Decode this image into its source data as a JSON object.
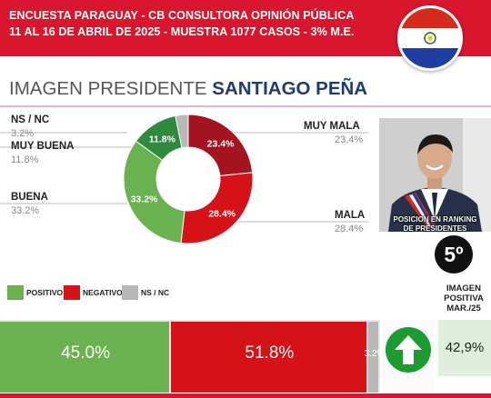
{
  "header": {
    "line1": "ENCUESTA PARAGUAY - CB CONSULTORA OPINIÓN PÚBLICA",
    "line2": "11 AL 16 DE ABRIL DE 2025 - MUESTRA 1077 CASOS   - 3% M.E.",
    "flag_icon": "paraguay-flag-icon"
  },
  "title": {
    "prefix": "IMAGEN PRESIDENTE",
    "name": "SANTIAGO PEÑA"
  },
  "colors": {
    "header_red": "#d9162d",
    "title_blue": "#1f3b73",
    "dark_red": "#a31420",
    "red": "#d51217",
    "green": "#6ab24f",
    "dark_green": "#2f8a3e",
    "gray": "#b8b8b8"
  },
  "chart_data": [
    {
      "type": "pie",
      "subtype": "donut",
      "slices": [
        {
          "label": "MUY MALA",
          "value": 23.4,
          "value_text": "23.4%",
          "color": "#a31420"
        },
        {
          "label": "MALA",
          "value": 28.4,
          "value_text": "28.4%",
          "color": "#d51217"
        },
        {
          "label": "BUENA",
          "value": 33.2,
          "value_text": "33.2%",
          "color": "#6ab24f"
        },
        {
          "label": "MUY BUENA",
          "value": 11.8,
          "value_text": "11.8%",
          "color": "#2f8a3e"
        },
        {
          "label": "NS / NC",
          "value": 3.2,
          "value_text": "3.2%",
          "color": "#b8b8b8"
        }
      ]
    },
    {
      "type": "bar",
      "subtype": "stacked-horizontal",
      "segments": [
        {
          "label": "POSITIVO",
          "value": 45.0,
          "value_text": "45.0%",
          "color": "#6ab24f"
        },
        {
          "label": "NEGATIVO",
          "value": 51.8,
          "value_text": "51.8%",
          "color": "#d51217"
        },
        {
          "label": "NS / NC",
          "value": 3.2,
          "value_text": "3.2%",
          "color": "#b8b8b8"
        }
      ]
    }
  ],
  "side_panel": {
    "ranking_caption_1": "POSICION EN RANKING",
    "ranking_caption_2": "DE PRESIDENTES",
    "rank": "5º",
    "trend_icon": "arrow-up-icon",
    "prev_label_1": "IMAGEN",
    "prev_label_2": "POSITIVA",
    "prev_label_3": "MAR./25",
    "prev_value": "42,9%"
  }
}
